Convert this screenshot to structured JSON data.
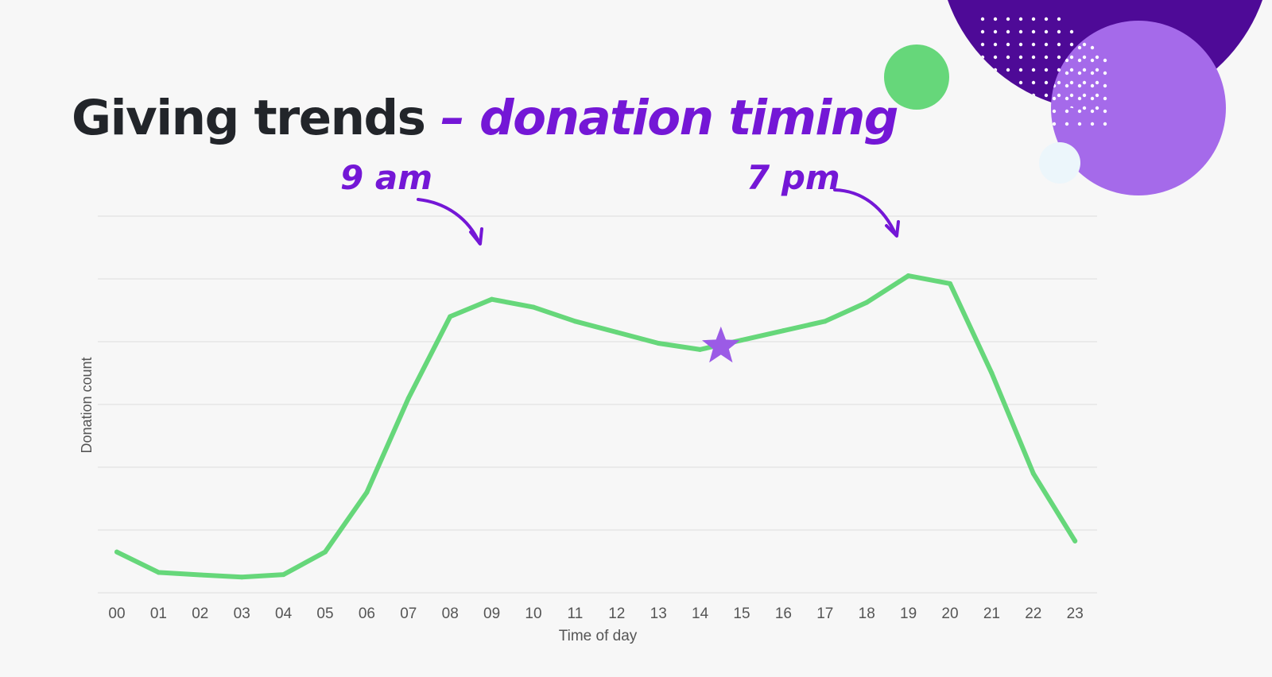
{
  "title": {
    "main": "Giving trends",
    "accent": "– donation timing"
  },
  "colors": {
    "background": "#f7f7f7",
    "title_text": "#22252a",
    "accent_purple": "#7417d6",
    "line_green": "#66d77a",
    "star_purple": "#9b5be6",
    "deco_dark_purple": "#4e0a97",
    "deco_light_purple": "#a56aea",
    "deco_green": "#66d77a",
    "grid": "#dcdcdc"
  },
  "chart_data": {
    "type": "line",
    "x": [
      "00",
      "01",
      "02",
      "03",
      "04",
      "05",
      "06",
      "07",
      "08",
      "09",
      "10",
      "11",
      "12",
      "13",
      "14",
      "15",
      "16",
      "17",
      "18",
      "19",
      "20",
      "21",
      "22",
      "23"
    ],
    "values": [
      13,
      6.5,
      5.7,
      5,
      5.8,
      13,
      32,
      62,
      88,
      93.5,
      91,
      86.5,
      83,
      79.5,
      77.5,
      80.5,
      83.5,
      86.5,
      92.5,
      101,
      98.5,
      70,
      38,
      16.5
    ],
    "xlabel": "Time of day",
    "ylabel": "Donation count",
    "ylim": [
      0,
      120
    ],
    "y_gridlines": [
      0,
      20,
      40,
      60,
      80,
      100,
      120
    ],
    "y_tick_labels_shown": false,
    "grid": true,
    "annotations": [
      {
        "text": "9 am",
        "target_x": "09"
      },
      {
        "text": "7 pm",
        "target_x": "19"
      }
    ],
    "marker": {
      "shape": "star",
      "x_between": [
        "14",
        "15"
      ],
      "value": 78.5
    }
  }
}
